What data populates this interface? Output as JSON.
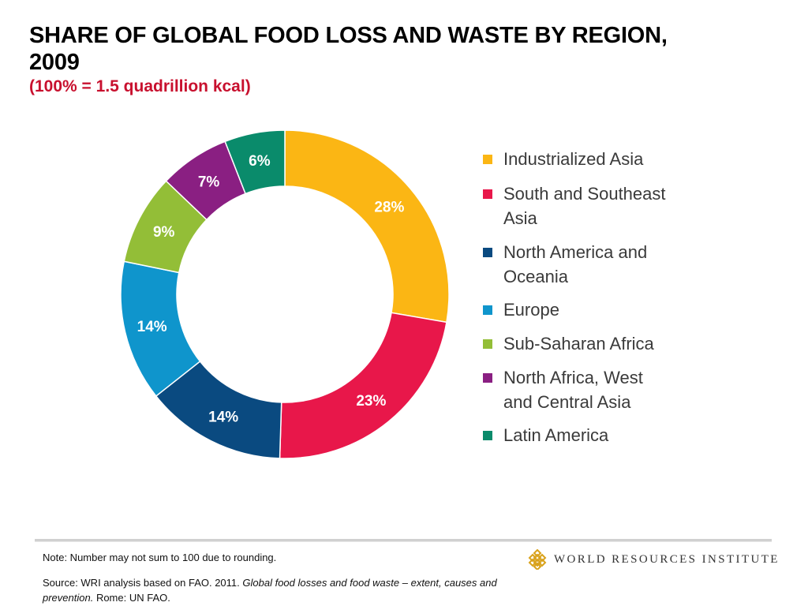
{
  "chart_data": {
    "type": "pie",
    "style": "donut",
    "title": "SHARE OF GLOBAL FOOD LOSS AND WASTE BY REGION, 2009",
    "subtitle": "(100% = 1.5 quadrillion kcal)",
    "legend_position": "right",
    "categories": [
      "Industrialized Asia",
      "South and Southeast Asia",
      "North America and Oceania",
      "Europe",
      "Sub-Saharan Africa",
      "North Africa, West and Central Asia",
      "Latin America"
    ],
    "values": [
      28,
      23,
      14,
      14,
      9,
      7,
      6
    ],
    "data_labels": [
      "28%",
      "23%",
      "14%",
      "14%",
      "9%",
      "7%",
      "6%"
    ],
    "colors": [
      "#fbb614",
      "#e8174a",
      "#0a4a80",
      "#0f95cc",
      "#93be37",
      "#8a1f82",
      "#0a8b6b"
    ]
  },
  "footer": {
    "note": "Note: Number may not sum to 100 due to rounding.",
    "source_prefix": "Source: WRI analysis based on FAO. 2011. ",
    "source_title": "Global food losses and food waste – extent, causes and prevention.",
    "source_suffix": " Rome: UN FAO."
  },
  "logo": {
    "text": "WORLD RESOURCES INSTITUTE",
    "icon": "wri-lattice-icon",
    "color": "#d9a21b"
  }
}
